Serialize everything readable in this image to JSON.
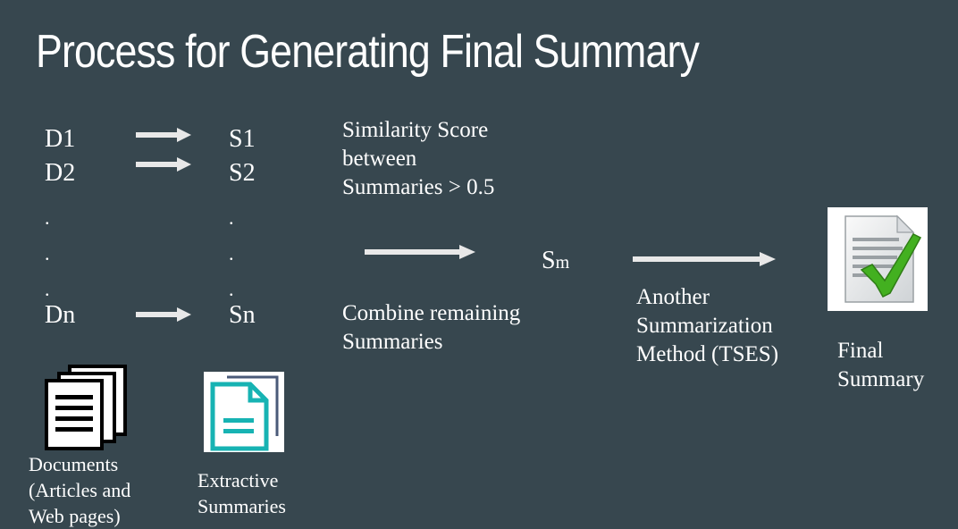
{
  "title": "Process for Generating Final Summary",
  "documents": {
    "labels": [
      "D1",
      "D2",
      ".",
      ".",
      ".",
      "Dn"
    ],
    "caption_lines": [
      "Documents",
      "(Articles and",
      "Web pages)"
    ]
  },
  "summaries": {
    "labels": [
      "S1",
      "S2",
      ".",
      ".",
      ".",
      "Sn"
    ],
    "caption_lines": [
      "Extractive",
      "Summaries"
    ]
  },
  "similarity": {
    "lines": [
      "Similarity Score",
      "between",
      "Summaries > 0.5"
    ]
  },
  "combine": {
    "lines": [
      "Combine remaining",
      "Summaries"
    ]
  },
  "merged": {
    "base": "S",
    "subscript": "m"
  },
  "method": {
    "lines": [
      "Another",
      "Summarization",
      "Method (TSES)"
    ]
  },
  "final": {
    "lines": [
      "Final",
      "Summary"
    ]
  },
  "icons": [
    "documents-icon",
    "extractive-summary-icon",
    "final-summary-check-icon",
    "arrow-right-icon"
  ],
  "colors": {
    "background": "#37474f",
    "text": "#ffffff",
    "arrow": "#e8e8e8",
    "accent_teal": "#17b3b3",
    "check_green": "#43b020"
  }
}
